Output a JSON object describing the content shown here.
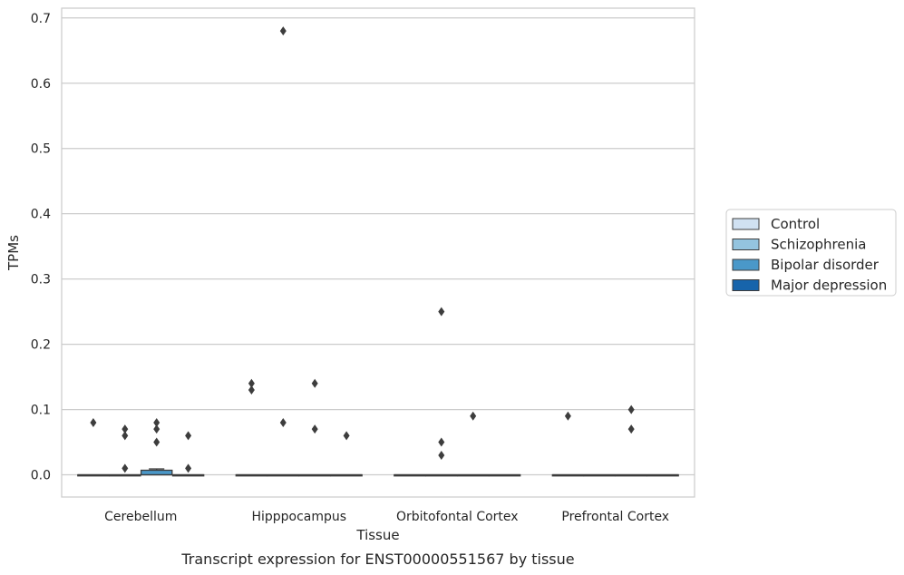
{
  "chart_data": {
    "type": "box",
    "xlabel": "Tissue",
    "ylabel": "TPMs",
    "caption": "Transcript expression for ENST00000551567 by tissue",
    "ylim": [
      -0.034,
      0.715
    ],
    "yticks": [
      0.0,
      0.1,
      0.2,
      0.3,
      0.4,
      0.5,
      0.6,
      0.7
    ],
    "ytick_labels": [
      "0.0",
      "0.1",
      "0.2",
      "0.3",
      "0.4",
      "0.5",
      "0.6",
      "0.7"
    ],
    "grid": "horizontal",
    "legend_position": "right",
    "categories": [
      "Cerebellum",
      "Hipppocampus",
      "Orbitofontal Cortex",
      "Prefrontal Cortex"
    ],
    "series": [
      {
        "name": "Control",
        "color": "#d0e1f2",
        "boxes": [
          {
            "q1": 0,
            "median": 0,
            "q3": 0,
            "whisker_low": 0,
            "whisker_high": 0,
            "outliers": [
              0.08
            ]
          },
          {
            "q1": 0,
            "median": 0,
            "q3": 0,
            "whisker_low": 0,
            "whisker_high": 0,
            "outliers": [
              0.14,
              0.13
            ]
          },
          {
            "q1": 0,
            "median": 0,
            "q3": 0,
            "whisker_low": 0,
            "whisker_high": 0,
            "outliers": []
          },
          {
            "q1": 0,
            "median": 0,
            "q3": 0,
            "whisker_low": 0,
            "whisker_high": 0,
            "outliers": [
              0.09
            ]
          }
        ]
      },
      {
        "name": "Schizophrenia",
        "color": "#94c4df",
        "boxes": [
          {
            "q1": 0,
            "median": 0,
            "q3": 0,
            "whisker_low": 0,
            "whisker_high": 0,
            "outliers": [
              0.07,
              0.06,
              0.01
            ]
          },
          {
            "q1": 0,
            "median": 0,
            "q3": 0,
            "whisker_low": 0,
            "whisker_high": 0,
            "outliers": [
              0.68,
              0.08
            ]
          },
          {
            "q1": 0,
            "median": 0,
            "q3": 0,
            "whisker_low": 0,
            "whisker_high": 0,
            "outliers": [
              0.25,
              0.05,
              0.03
            ]
          },
          {
            "q1": 0,
            "median": 0,
            "q3": 0,
            "whisker_low": 0,
            "whisker_high": 0,
            "outliers": []
          }
        ]
      },
      {
        "name": "Bipolar disorder",
        "color": "#4a98c9",
        "boxes": [
          {
            "q1": 0,
            "median": 0,
            "q3": 0.007,
            "whisker_low": 0,
            "whisker_high": 0.009,
            "outliers": [
              0.08,
              0.07,
              0.05
            ]
          },
          {
            "q1": 0,
            "median": 0,
            "q3": 0,
            "whisker_low": 0,
            "whisker_high": 0,
            "outliers": [
              0.14,
              0.07
            ]
          },
          {
            "q1": 0,
            "median": 0,
            "q3": 0,
            "whisker_low": 0,
            "whisker_high": 0,
            "outliers": [
              0.09
            ]
          },
          {
            "q1": 0,
            "median": 0,
            "q3": 0,
            "whisker_low": 0,
            "whisker_high": 0,
            "outliers": [
              0.1,
              0.07
            ]
          }
        ]
      },
      {
        "name": "Major depression",
        "color": "#1764ab",
        "boxes": [
          {
            "q1": 0,
            "median": 0,
            "q3": 0,
            "whisker_low": 0,
            "whisker_high": 0,
            "outliers": [
              0.06,
              0.01
            ]
          },
          {
            "q1": 0,
            "median": 0,
            "q3": 0,
            "whisker_low": 0,
            "whisker_high": 0,
            "outliers": [
              0.06
            ]
          },
          {
            "q1": 0,
            "median": 0,
            "q3": 0,
            "whisker_low": 0,
            "whisker_high": 0,
            "outliers": []
          },
          {
            "q1": 0,
            "median": 0,
            "q3": 0,
            "whisker_low": 0,
            "whisker_high": 0,
            "outliers": []
          }
        ]
      }
    ]
  }
}
